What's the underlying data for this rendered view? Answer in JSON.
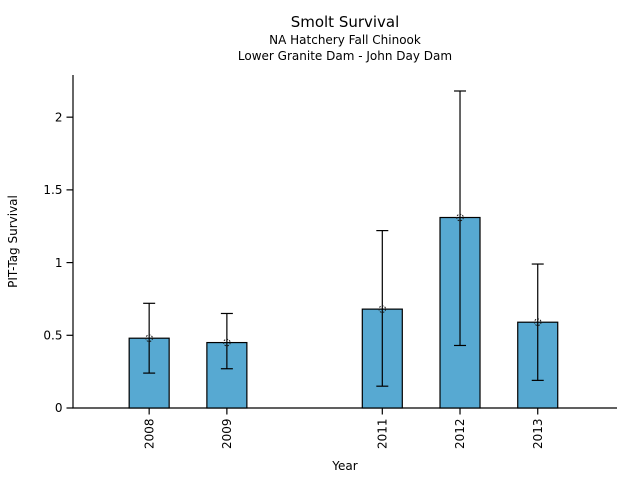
{
  "window": {
    "background_color": "#ffffff",
    "text_color": "#000000"
  },
  "chart_data": {
    "type": "bar",
    "title": "Smolt Survival",
    "subtitle1": "NA Hatchery Fall Chinook",
    "subtitle2": "Lower Granite Dam - John Day Dam",
    "xlabel": "Year",
    "ylabel": "PIT-Tag Survival",
    "categories": [
      "2008",
      "2009",
      "2011",
      "2012",
      "2013"
    ],
    "x": [
      2008,
      2009,
      2011,
      2012,
      2013
    ],
    "series": [
      {
        "name": "PIT-Tag Survival",
        "values": [
          0.48,
          0.45,
          0.68,
          1.31,
          0.59
        ],
        "error_low": [
          0.24,
          0.27,
          0.15,
          0.43,
          0.19
        ],
        "error_high": [
          0.72,
          0.65,
          1.22,
          2.18,
          0.99
        ]
      }
    ],
    "yticks": [
      0,
      0.5,
      1,
      1.5,
      2
    ],
    "ytick_labels": [
      "0",
      "0.5",
      "1",
      "1.5",
      "2"
    ],
    "ylim": [
      0,
      2.29
    ],
    "xlim": [
      2007.02,
      2014.02
    ],
    "grid": false,
    "legend": false,
    "marker_style": "open-dashed-circle",
    "colors": {
      "bar_fill": "#57A9D2",
      "bar_edge": "#000000",
      "error_bar": "#000000",
      "marker_stroke": "#1b1b1b",
      "axis": "#000000"
    },
    "notes": "Year 2010 has no bar and no tick; x spacing for it is preserved"
  }
}
